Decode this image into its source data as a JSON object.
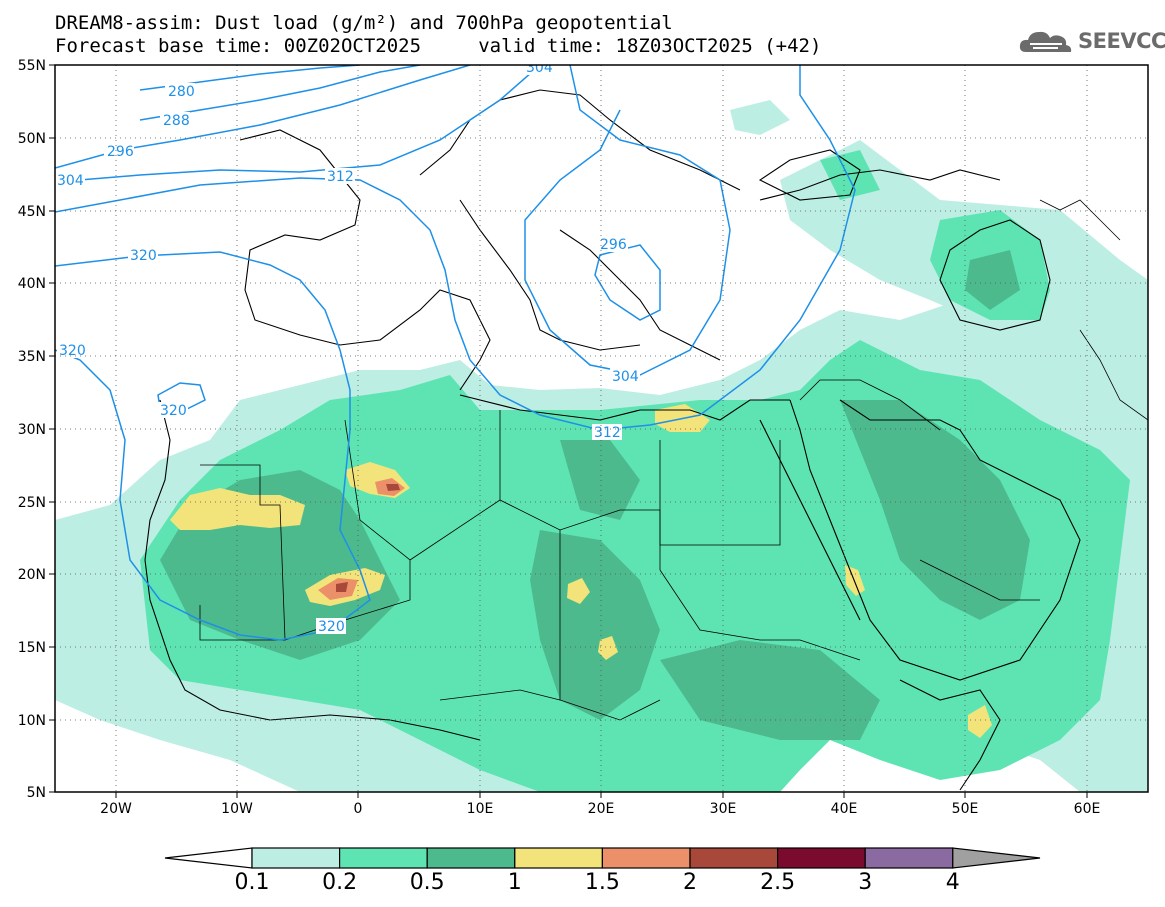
{
  "header": {
    "line1": "DREAM8-assim: Dust load (g/m²) and 700hPa geopotential",
    "line2": "Forecast base time: 00Z02OCT2025     valid time: 18Z03OCT2025 (+42)"
  },
  "logo": {
    "text": "SEEVCCC",
    "icon": "cloud-logo-icon"
  },
  "map": {
    "lat_ticks": [
      "55N",
      "50N",
      "45N",
      "40N",
      "35N",
      "30N",
      "25N",
      "20N",
      "15N",
      "10N",
      "5N"
    ],
    "lon_ticks": [
      "20W",
      "10W",
      "0",
      "10E",
      "20E",
      "30E",
      "40E",
      "50E",
      "60E"
    ],
    "extent": {
      "lon": [
        -25,
        65
      ],
      "lat": [
        5,
        55
      ]
    }
  },
  "contours": {
    "labels": [
      "280",
      "288",
      "296",
      "304",
      "312",
      "320",
      "320",
      "320",
      "296",
      "304",
      "312",
      "320",
      "304"
    ]
  },
  "colorbar": {
    "labels": [
      "0.1",
      "0.2",
      "0.5",
      "1",
      "1.5",
      "2",
      "2.5",
      "3",
      "4"
    ],
    "colors": [
      "#bdeee3",
      "#5ee4b3",
      "#4dba8e",
      "#f2e47a",
      "#eb9068",
      "#a8483b",
      "#7a0a2e",
      "#8a6aa0",
      "#a0a0a0"
    ]
  }
}
